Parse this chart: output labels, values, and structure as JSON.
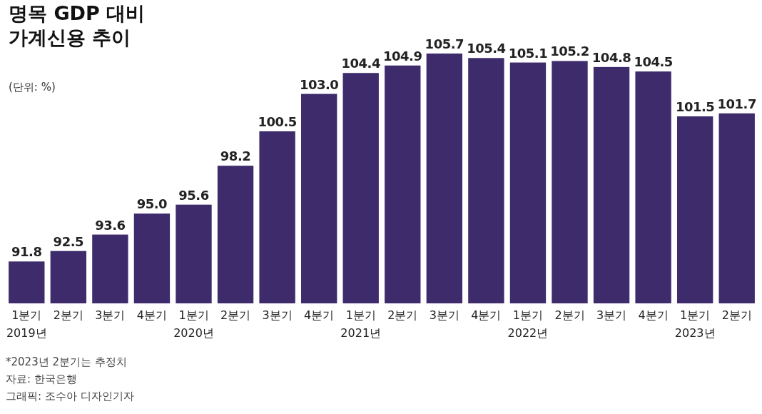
{
  "chart_data": {
    "type": "bar",
    "title": "명목 GDP 대비\n가계신용 추이",
    "subtitle": "(단위: %)",
    "categories": [
      "1분기\n2019년",
      "2분기",
      "3분기",
      "4분기",
      "1분기\n2020년",
      "2분기",
      "3분기",
      "4분기",
      "1분기\n2021년",
      "2분기",
      "3분기",
      "4분기",
      "1분기\n2022년",
      "2분기",
      "3분기",
      "4분기",
      "1분기\n2023년",
      "2분기"
    ],
    "values": [
      91.8,
      92.5,
      93.6,
      95.0,
      95.6,
      98.2,
      100.5,
      103.0,
      104.4,
      104.9,
      105.7,
      105.4,
      105.1,
      105.2,
      104.8,
      104.5,
      101.5,
      101.7
    ],
    "value_labels": [
      "91.8",
      "92.5",
      "93.6",
      "95.0",
      "95.6",
      "98.2",
      "100.5",
      "103.0",
      "104.4",
      "104.9",
      "105.7",
      "105.4",
      "105.1",
      "105.2",
      "104.8",
      "104.5",
      "101.5",
      "101.7"
    ],
    "color": "#3d2b6b",
    "ylim": [
      89,
      105.7
    ],
    "annotations": [
      "*2023년 2분기는 추정치",
      "자료: 한국은행",
      "그래픽: 조수아 디자인기자"
    ]
  }
}
